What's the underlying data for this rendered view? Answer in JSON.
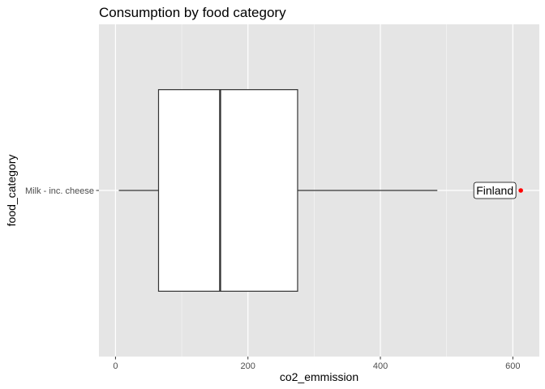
{
  "chart_data": {
    "type": "box",
    "title": "Consumption by food category",
    "xlabel": "co2_emmission",
    "ylabel": "food_category",
    "xlim": [
      -25,
      640
    ],
    "x_ticks": [
      0,
      200,
      400,
      600
    ],
    "x_tick_labels": [
      "0",
      "200",
      "400",
      "600"
    ],
    "categories": [
      "Milk - inc. cheese"
    ],
    "boxes": [
      {
        "category": "Milk - inc. cheese",
        "whisker_low": 5,
        "q1": 65,
        "median": 158,
        "q3": 275,
        "whisker_high": 486
      }
    ],
    "points": [
      {
        "x": 612,
        "category": "Milk - inc. cheese",
        "color": "#ff0000"
      }
    ],
    "annotations": [
      {
        "text": "Finland",
        "x": 612,
        "category": "Milk - inc. cheese"
      }
    ],
    "grid": true,
    "legend": "none",
    "colors": {
      "panel": "#e5e5e5",
      "grid_major": "#ffffff",
      "box_fill": "#ffffff",
      "box_line": "#333333",
      "point": "#ff0000"
    }
  }
}
